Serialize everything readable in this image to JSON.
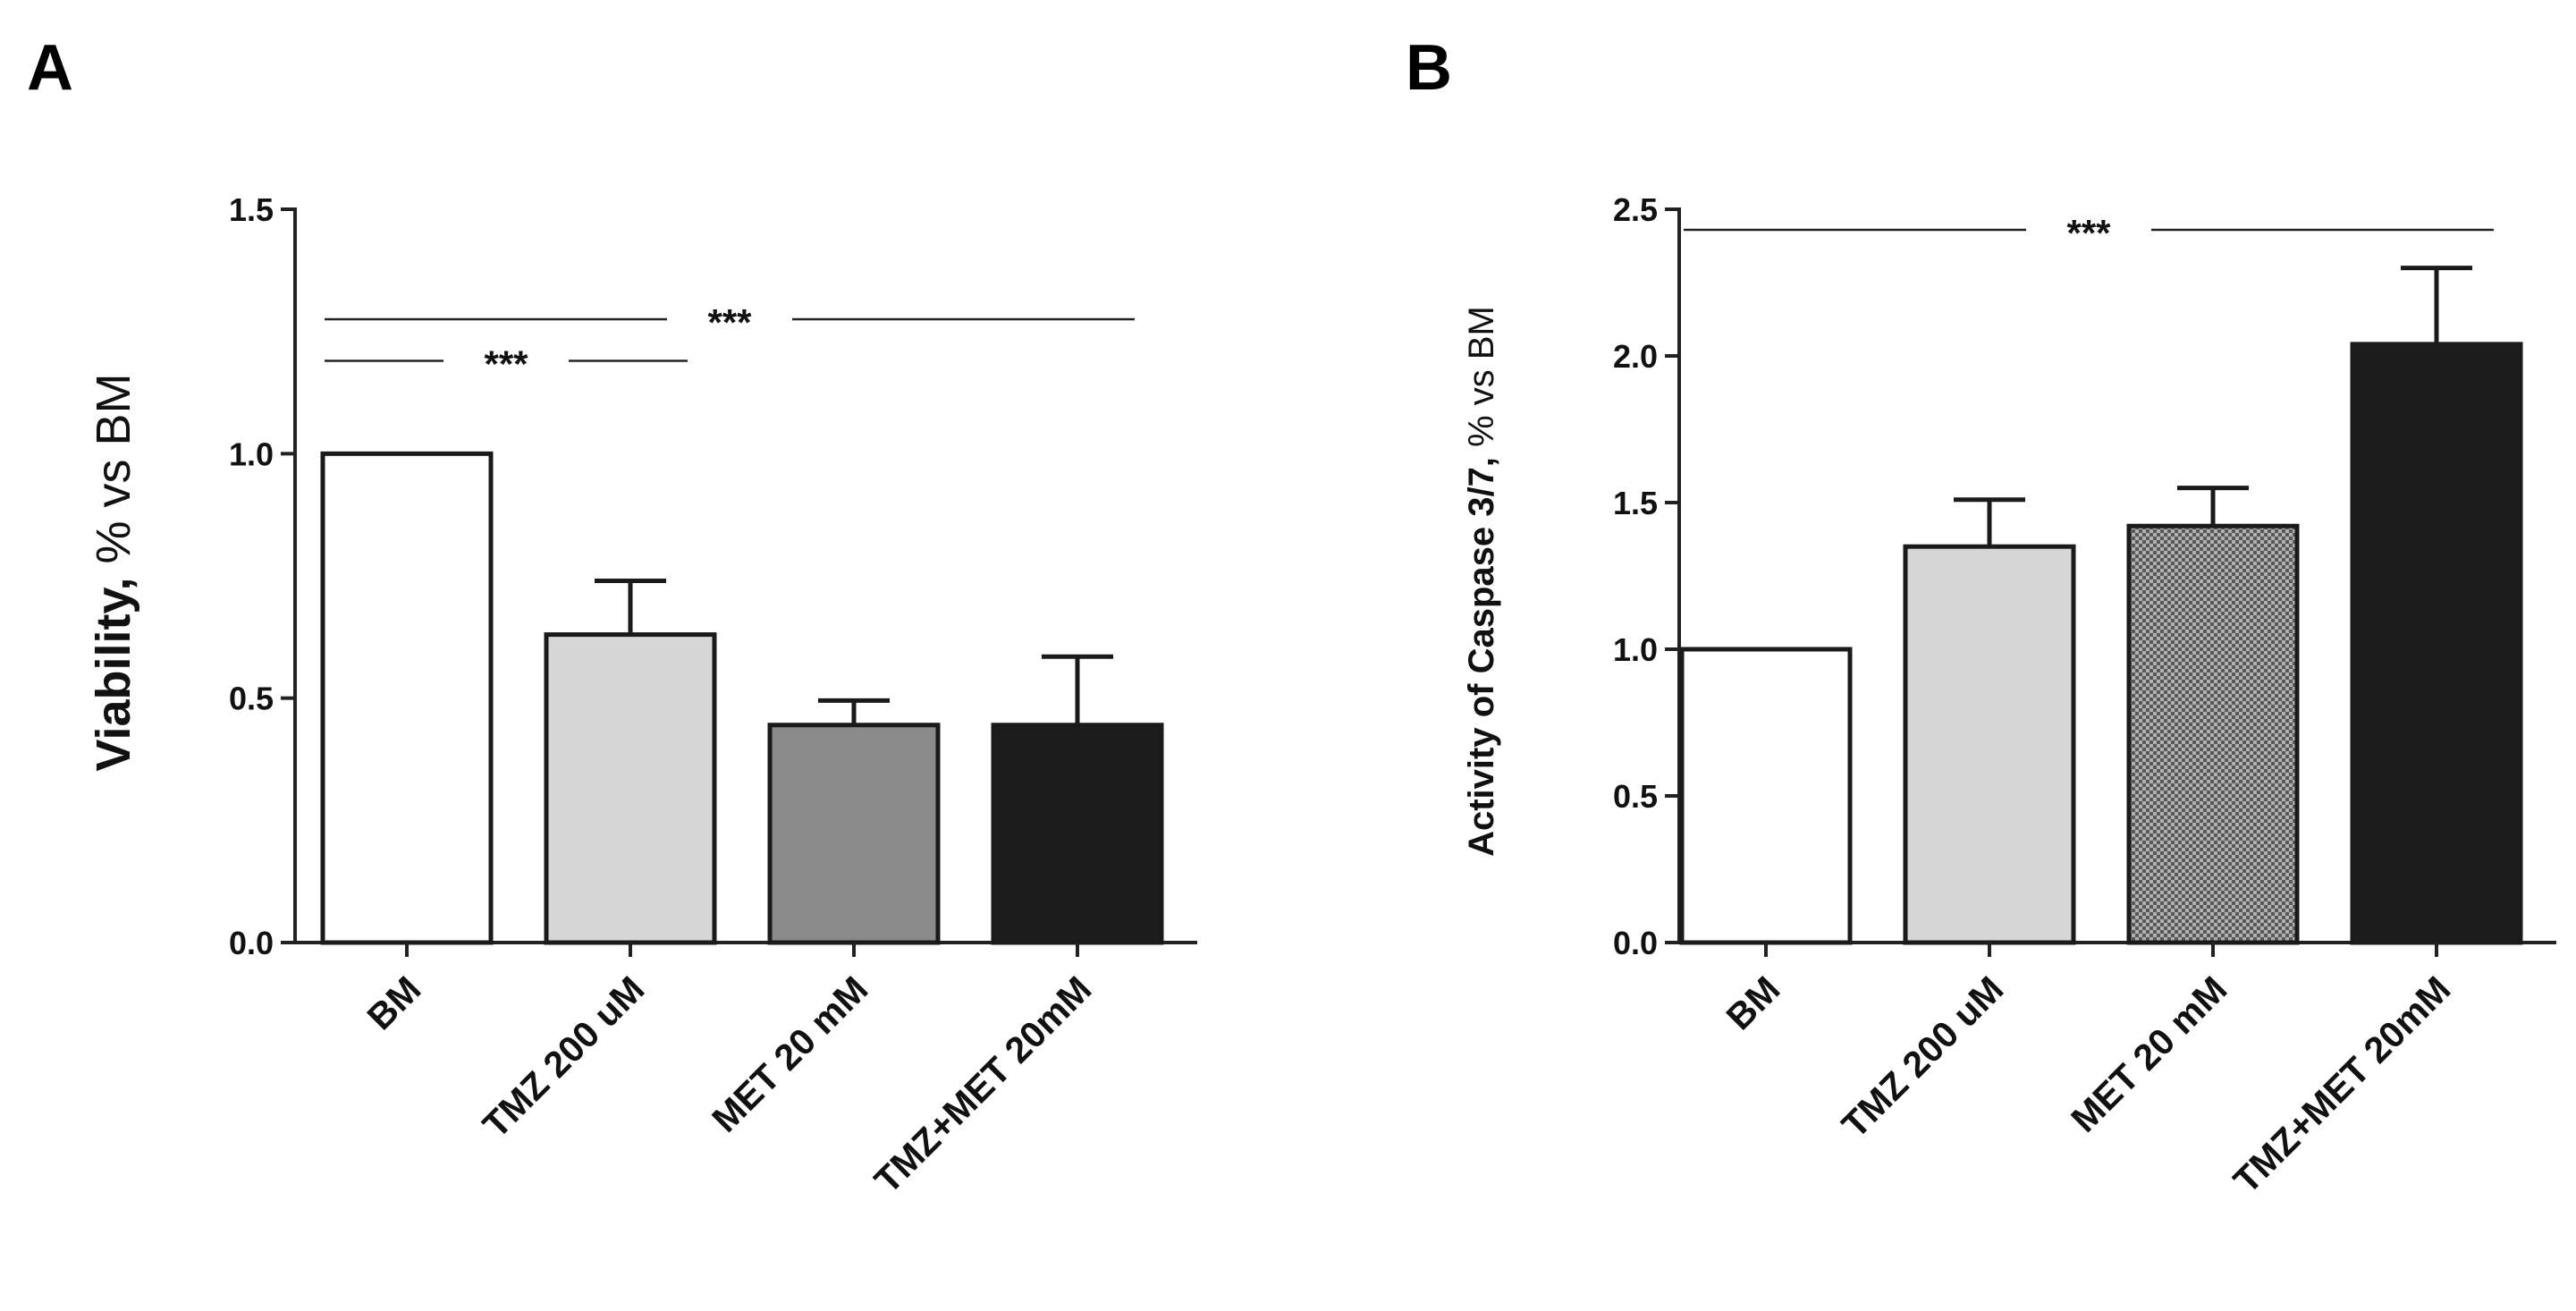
{
  "panels": {
    "A": {
      "letter": "A"
    },
    "B": {
      "letter": "B"
    }
  },
  "colors": {
    "white": "#ffffff",
    "light_gray": "#d6d6d6",
    "mid_gray": "#8a8a8a",
    "checker": "#7a7a7a",
    "black": "#1c1c1c"
  },
  "chart_data": [
    {
      "type": "bar",
      "panel": "A",
      "title": "",
      "xlabel": "",
      "ylabel_bold": "Viability,",
      "ylabel_rest": " % vs BM",
      "categories": [
        "BM",
        "TMZ 200 uM",
        "MET 20 mM",
        "TMZ+MET 20mM"
      ],
      "values": [
        1.0,
        0.63,
        0.445,
        0.445
      ],
      "errors": [
        0.0,
        0.11,
        0.05,
        0.14
      ],
      "fills": [
        "white",
        "light_gray",
        "mid_gray",
        "black"
      ],
      "ylim": [
        0,
        1.5
      ],
      "yticks": [
        0.0,
        0.5,
        1.0,
        1.5
      ],
      "ytick_labels": [
        "0.0",
        "0.5",
        "1.0",
        "1.5"
      ],
      "significance": [
        {
          "from": 0,
          "to": 3,
          "y": 1.275,
          "label": "***"
        },
        {
          "from": 0,
          "to": 1,
          "y": 1.19,
          "label": "***"
        }
      ]
    },
    {
      "type": "bar",
      "panel": "B",
      "title": "",
      "xlabel": "",
      "ylabel_bold": "Activity of Caspase 3/7,",
      "ylabel_rest": " % vs BM",
      "categories": [
        "BM",
        "TMZ 200 uM",
        "MET 20 mM",
        "TMZ+MET 20mM"
      ],
      "values": [
        1.0,
        1.35,
        1.42,
        2.04
      ],
      "errors": [
        0.0,
        0.16,
        0.13,
        0.26
      ],
      "fills": [
        "white",
        "light_gray",
        "checker",
        "black"
      ],
      "ylim": [
        0,
        2.5
      ],
      "yticks": [
        0.0,
        0.5,
        1.0,
        1.5,
        2.0,
        2.5
      ],
      "ytick_labels": [
        "0.0",
        "0.5",
        "1.0",
        "1.5",
        "2.0",
        "2.5"
      ],
      "significance": [
        {
          "from": 0,
          "to": 3,
          "y": 2.43,
          "label": "***"
        }
      ]
    }
  ]
}
